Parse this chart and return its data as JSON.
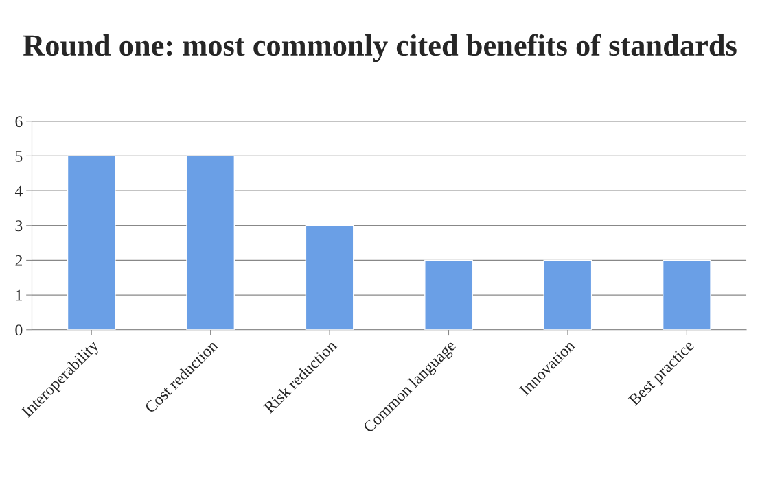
{
  "chart_data": {
    "type": "bar",
    "title": "Round one: most commonly cited benefits of standards",
    "categories": [
      "Interoperability",
      "Cost reduction",
      "Risk reduction",
      "Common language",
      "Innovation",
      "Best practice"
    ],
    "values": [
      5,
      5,
      3,
      2,
      2,
      2
    ],
    "color": "#6a9fe6",
    "ylim": [
      0,
      6
    ],
    "yticks": [
      0,
      1,
      2,
      3,
      4,
      5,
      6
    ],
    "grid": "y"
  }
}
